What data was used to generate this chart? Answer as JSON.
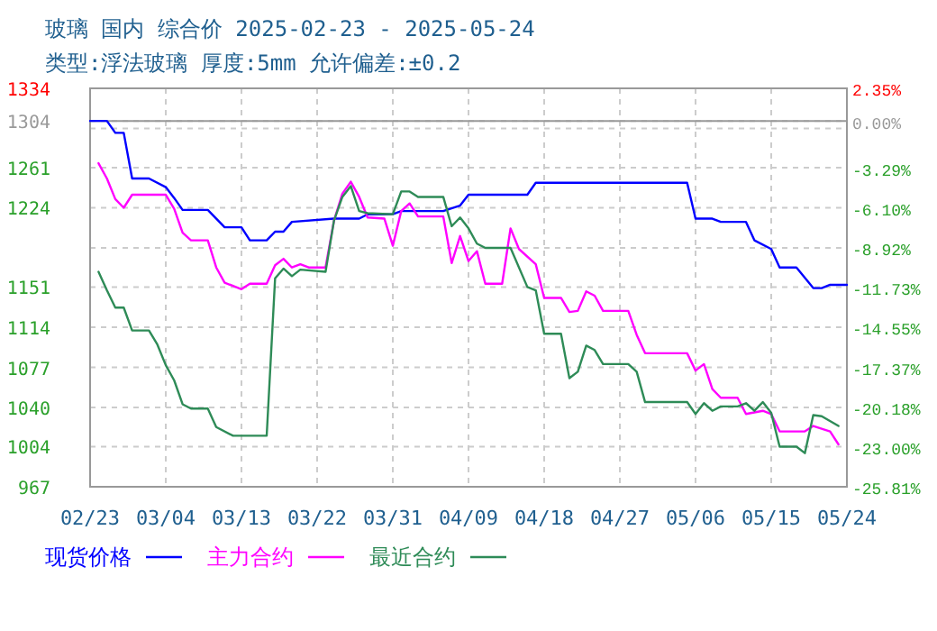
{
  "chart_data": {
    "type": "line",
    "title": "玻璃 国内 综合价 2025-02-23 - 2025-05-24",
    "subtitle": "类型:浮法玻璃 厚度:5mm 允许偏差:±0.2",
    "xlim": [
      "2025-02-23",
      "2025-05-24"
    ],
    "xticks": [
      {
        "value": "2025-02-23",
        "label": "02/23"
      },
      {
        "value": "2025-03-04",
        "label": "03/04"
      },
      {
        "value": "2025-03-13",
        "label": "03/13"
      },
      {
        "value": "2025-03-22",
        "label": "03/22"
      },
      {
        "value": "2025-03-31",
        "label": "03/31"
      },
      {
        "value": "2025-04-09",
        "label": "04/09"
      },
      {
        "value": "2025-04-18",
        "label": "04/18"
      },
      {
        "value": "2025-04-27",
        "label": "04/27"
      },
      {
        "value": "2025-05-06",
        "label": "05/06"
      },
      {
        "value": "2025-05-15",
        "label": "05/15"
      },
      {
        "value": "2025-05-24",
        "label": "05/24"
      }
    ],
    "ylim": [
      967,
      1334
    ],
    "yticks": [
      967,
      1004,
      1040,
      1077,
      1114,
      1151,
      {
        "value": 1187,
        "label": null
      },
      1224,
      1261,
      {
        "value": 1297,
        "label": null
      },
      1304,
      1334
    ],
    "y2lim": [
      -25.81,
      2.35
    ],
    "y2ticks": [
      {
        "value": -25.81,
        "label": "-25.81%"
      },
      {
        "value": -23.0,
        "label": "-23.00%"
      },
      {
        "value": -20.18,
        "label": "-20.18%"
      },
      {
        "value": -17.37,
        "label": "-17.37%"
      },
      {
        "value": -14.55,
        "label": "-14.55%"
      },
      {
        "value": -11.73,
        "label": "-11.73%"
      },
      {
        "value": -8.92,
        "label": "-8.92%"
      },
      {
        "value": -6.1,
        "label": "-6.10%"
      },
      {
        "value": -3.29,
        "label": "-3.29%"
      },
      {
        "value": 0,
        "label": "0.00%"
      },
      {
        "value": 2.35,
        "label": "2.35%"
      }
    ],
    "ref_lines": [
      {
        "axis": "y",
        "value": 1304,
        "color": "#999999",
        "line_style": "solid"
      }
    ],
    "grid": true,
    "legend": "bottom",
    "marker": "none",
    "line_style": "solid",
    "series": [
      {
        "name": "现货价格",
        "color": "#0000ff",
        "x": [
          "2025-02-23",
          "2025-02-25",
          "2025-02-26",
          "2025-02-27",
          "2025-02-28",
          "2025-03-02",
          "2025-03-04",
          "2025-03-05",
          "2025-03-06",
          "2025-03-09",
          "2025-03-11",
          "2025-03-13",
          "2025-03-14",
          "2025-03-16",
          "2025-03-17",
          "2025-03-18",
          "2025-03-19",
          "2025-03-24",
          "2025-03-27",
          "2025-03-28",
          "2025-03-31",
          "2025-04-01",
          "2025-04-06",
          "2025-04-08",
          "2025-04-09",
          "2025-04-16",
          "2025-04-17",
          "2025-05-05",
          "2025-05-06",
          "2025-05-08",
          "2025-05-09",
          "2025-05-12",
          "2025-05-13",
          "2025-05-15",
          "2025-05-16",
          "2025-05-18",
          "2025-05-20",
          "2025-05-21",
          "2025-05-22",
          "2025-05-24"
        ],
        "values": [
          1304,
          1304,
          1293,
          1293,
          1251,
          1251,
          1243,
          1233,
          1222,
          1222,
          1206,
          1206,
          1194,
          1194,
          1202,
          1202,
          1211,
          1214,
          1214,
          1218,
          1218,
          1221,
          1221,
          1226,
          1236,
          1236,
          1247,
          1247,
          1214,
          1214,
          1211,
          1211,
          1194,
          1186,
          1169,
          1169,
          1150,
          1150,
          1153,
          1153
        ]
      },
      {
        "name": "主力合约",
        "color": "#ff00ff",
        "x": [
          "2025-02-24",
          "2025-02-25",
          "2025-02-26",
          "2025-02-27",
          "2025-02-28",
          "2025-03-04",
          "2025-03-05",
          "2025-03-06",
          "2025-03-07",
          "2025-03-09",
          "2025-03-10",
          "2025-03-11",
          "2025-03-12",
          "2025-03-13",
          "2025-03-14",
          "2025-03-16",
          "2025-03-17",
          "2025-03-18",
          "2025-03-19",
          "2025-03-20",
          "2025-03-21",
          "2025-03-23",
          "2025-03-24",
          "2025-03-25",
          "2025-03-26",
          "2025-03-27",
          "2025-03-28",
          "2025-03-30",
          "2025-03-31",
          "2025-04-01",
          "2025-04-02",
          "2025-04-03",
          "2025-04-06",
          "2025-04-07",
          "2025-04-08",
          "2025-04-09",
          "2025-04-10",
          "2025-04-11",
          "2025-04-13",
          "2025-04-14",
          "2025-04-15",
          "2025-04-17",
          "2025-04-18",
          "2025-04-20",
          "2025-04-21",
          "2025-04-22",
          "2025-04-23",
          "2025-04-24",
          "2025-04-25",
          "2025-04-28",
          "2025-04-29",
          "2025-04-30",
          "2025-05-05",
          "2025-05-06",
          "2025-05-07",
          "2025-05-08",
          "2025-05-09",
          "2025-05-11",
          "2025-05-12",
          "2025-05-14",
          "2025-05-15",
          "2025-05-16",
          "2025-05-19",
          "2025-05-20",
          "2025-05-22",
          "2025-05-23"
        ],
        "values": [
          1265,
          1251,
          1232,
          1224,
          1236,
          1236,
          1223,
          1201,
          1194,
          1194,
          1169,
          1155,
          1152,
          1149,
          1154,
          1154,
          1171,
          1177,
          1169,
          1172,
          1169,
          1169,
          1212,
          1237,
          1248,
          1234,
          1215,
          1214,
          1189,
          1221,
          1228,
          1216,
          1216,
          1173,
          1198,
          1175,
          1184,
          1154,
          1154,
          1205,
          1186,
          1172,
          1141,
          1141,
          1128,
          1129,
          1147,
          1143,
          1129,
          1129,
          1107,
          1090,
          1090,
          1074,
          1080,
          1057,
          1049,
          1049,
          1034,
          1037,
          1034,
          1018,
          1018,
          1023,
          1018,
          1006
        ]
      },
      {
        "name": "最近合约",
        "color": "#2e8b57",
        "x": [
          "2025-02-24",
          "2025-02-25",
          "2025-02-26",
          "2025-02-27",
          "2025-02-28",
          "2025-03-02",
          "2025-03-03",
          "2025-03-04",
          "2025-03-05",
          "2025-03-06",
          "2025-03-07",
          "2025-03-09",
          "2025-03-10",
          "2025-03-12",
          "2025-03-16",
          "2025-03-17",
          "2025-03-18",
          "2025-03-19",
          "2025-03-20",
          "2025-03-23",
          "2025-03-24",
          "2025-03-25",
          "2025-03-26",
          "2025-03-27",
          "2025-03-28",
          "2025-03-31",
          "2025-04-01",
          "2025-04-02",
          "2025-04-03",
          "2025-04-06",
          "2025-04-07",
          "2025-04-08",
          "2025-04-09",
          "2025-04-10",
          "2025-04-11",
          "2025-04-14",
          "2025-04-16",
          "2025-04-17",
          "2025-04-18",
          "2025-04-20",
          "2025-04-21",
          "2025-04-22",
          "2025-04-23",
          "2025-04-24",
          "2025-04-25",
          "2025-04-28",
          "2025-04-29",
          "2025-04-30",
          "2025-05-05",
          "2025-05-06",
          "2025-05-07",
          "2025-05-08",
          "2025-05-09",
          "2025-05-11",
          "2025-05-12",
          "2025-05-13",
          "2025-05-14",
          "2025-05-15",
          "2025-05-16",
          "2025-05-18",
          "2025-05-19",
          "2025-05-20",
          "2025-05-21",
          "2025-05-23"
        ],
        "values": [
          1165,
          1148,
          1132,
          1132,
          1111,
          1111,
          1098,
          1079,
          1065,
          1043,
          1039,
          1039,
          1022,
          1014,
          1014,
          1159,
          1168,
          1161,
          1167,
          1165,
          1212,
          1234,
          1244,
          1221,
          1219,
          1218,
          1239,
          1239,
          1234,
          1234,
          1207,
          1215,
          1205,
          1191,
          1187,
          1187,
          1151,
          1148,
          1108,
          1108,
          1067,
          1073,
          1097,
          1093,
          1080,
          1080,
          1073,
          1045,
          1045,
          1034,
          1044,
          1037,
          1041,
          1041,
          1044,
          1037,
          1045,
          1035,
          1004,
          1004,
          998,
          1033,
          1032,
          1023
        ]
      }
    ]
  }
}
